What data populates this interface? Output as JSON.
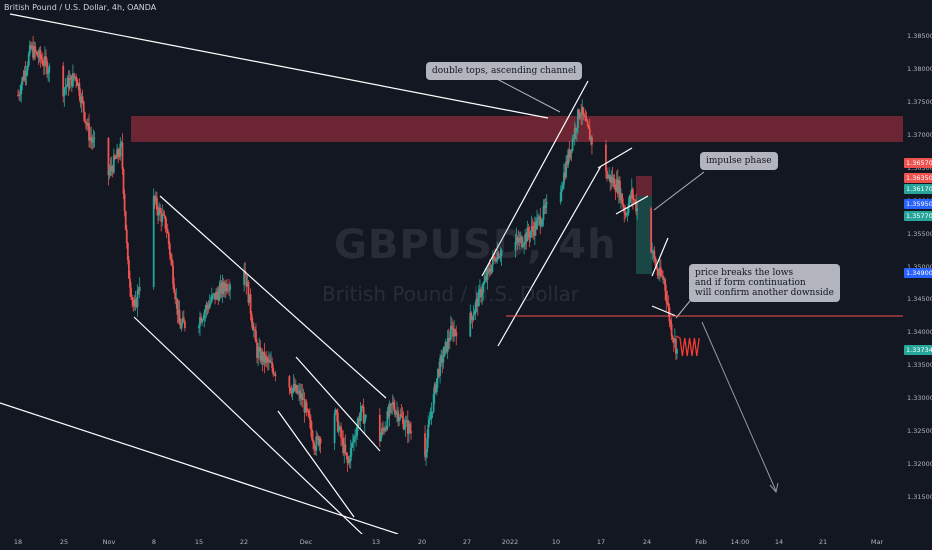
{
  "header": {
    "title": "British Pound / U.S. Dollar, 4h, OANDA"
  },
  "watermark": {
    "symbol": "GBPUSD, 4h",
    "description": "British Pound / U.S. Dollar"
  },
  "annotations": {
    "double_tops": "double tops, ascending channel",
    "impulse": "impulse phase",
    "breaks_line1": "price breaks the lows",
    "breaks_line2": "and if form continuation",
    "breaks_line3": "will confirm another downside"
  },
  "colors": {
    "up": "#26a69a",
    "down": "#ef5350",
    "zone_supply": "#8b2b39",
    "line": "#ffffff",
    "background": "#131722"
  },
  "chart_data": {
    "type": "candlestick",
    "symbol": "GBPUSD",
    "timeframe": "4h",
    "ylim": [
      1.312,
      1.388
    ],
    "y_ticks": [
      "1.38500",
      "1.38000",
      "1.37500",
      "1.37000",
      "1.36500",
      "1.36000",
      "1.35500",
      "1.35000",
      "1.34500",
      "1.34000",
      "1.33500",
      "1.33000",
      "1.32500",
      "1.32000",
      "1.31500"
    ],
    "price_badges": [
      {
        "value": "1.36570",
        "color": "#ef5350"
      },
      {
        "value": "1.36350",
        "color": "#ef5350"
      },
      {
        "value": "1.36170",
        "color": "#26a69a"
      },
      {
        "value": "1.35950",
        "color": "#2962ff"
      },
      {
        "value": "1.35770",
        "color": "#26a69a"
      },
      {
        "value": "1.34900",
        "color": "#2962ff"
      },
      {
        "value": "1.33734",
        "color": "#26a69a"
      }
    ],
    "x_ticks": [
      "18",
      "25",
      "Nov",
      "8",
      "15",
      "22",
      "Dec",
      "13",
      "20",
      "27",
      "2022",
      "10",
      "17",
      "24",
      "Feb",
      "14:00",
      "14",
      "21",
      "Mar"
    ],
    "trend": [
      [
        "2021-10-18",
        1.376
      ],
      [
        "2021-10-20",
        1.383
      ],
      [
        "2021-10-22",
        1.381
      ],
      [
        "2021-10-25",
        1.377
      ],
      [
        "2021-10-27",
        1.379
      ],
      [
        "2021-10-29",
        1.37
      ],
      [
        "2021-11-01",
        1.364
      ],
      [
        "2021-11-03",
        1.368
      ],
      [
        "2021-11-04",
        1.35
      ],
      [
        "2021-11-05",
        1.343
      ],
      [
        "2021-11-08",
        1.36
      ],
      [
        "2021-11-10",
        1.356
      ],
      [
        "2021-11-12",
        1.341
      ],
      [
        "2021-11-15",
        1.342
      ],
      [
        "2021-11-17",
        1.345
      ],
      [
        "2021-11-19",
        1.347
      ],
      [
        "2021-11-22",
        1.35
      ],
      [
        "2021-11-24",
        1.337
      ],
      [
        "2021-11-26",
        1.335
      ],
      [
        "2021-11-29",
        1.332
      ],
      [
        "2021-12-01",
        1.33
      ],
      [
        "2021-12-03",
        1.323
      ],
      [
        "2021-12-06",
        1.328
      ],
      [
        "2021-12-08",
        1.32
      ],
      [
        "2021-12-10",
        1.328
      ],
      [
        "2021-12-13",
        1.324
      ],
      [
        "2021-12-15",
        1.329
      ],
      [
        "2021-12-17",
        1.326
      ],
      [
        "2021-12-20",
        1.322
      ],
      [
        "2021-12-22",
        1.334
      ],
      [
        "2021-12-24",
        1.34
      ],
      [
        "2021-12-27",
        1.342
      ],
      [
        "2021-12-29",
        1.347
      ],
      [
        "2021-12-31",
        1.352
      ],
      [
        "2022-01-04",
        1.354
      ],
      [
        "2022-01-06",
        1.356
      ],
      [
        "2022-01-10",
        1.362
      ],
      [
        "2022-01-12",
        1.37
      ],
      [
        "2022-01-13",
        1.374
      ],
      [
        "2022-01-14",
        1.371
      ],
      [
        "2022-01-17",
        1.364
      ],
      [
        "2022-01-19",
        1.362
      ],
      [
        "2022-01-20",
        1.358
      ],
      [
        "2022-01-21",
        1.361
      ],
      [
        "2022-01-24",
        1.353
      ],
      [
        "2022-01-25",
        1.349
      ],
      [
        "2022-01-26",
        1.348
      ],
      [
        "2022-01-27",
        1.341
      ],
      [
        "2022-01-28",
        1.3373
      ]
    ]
  }
}
